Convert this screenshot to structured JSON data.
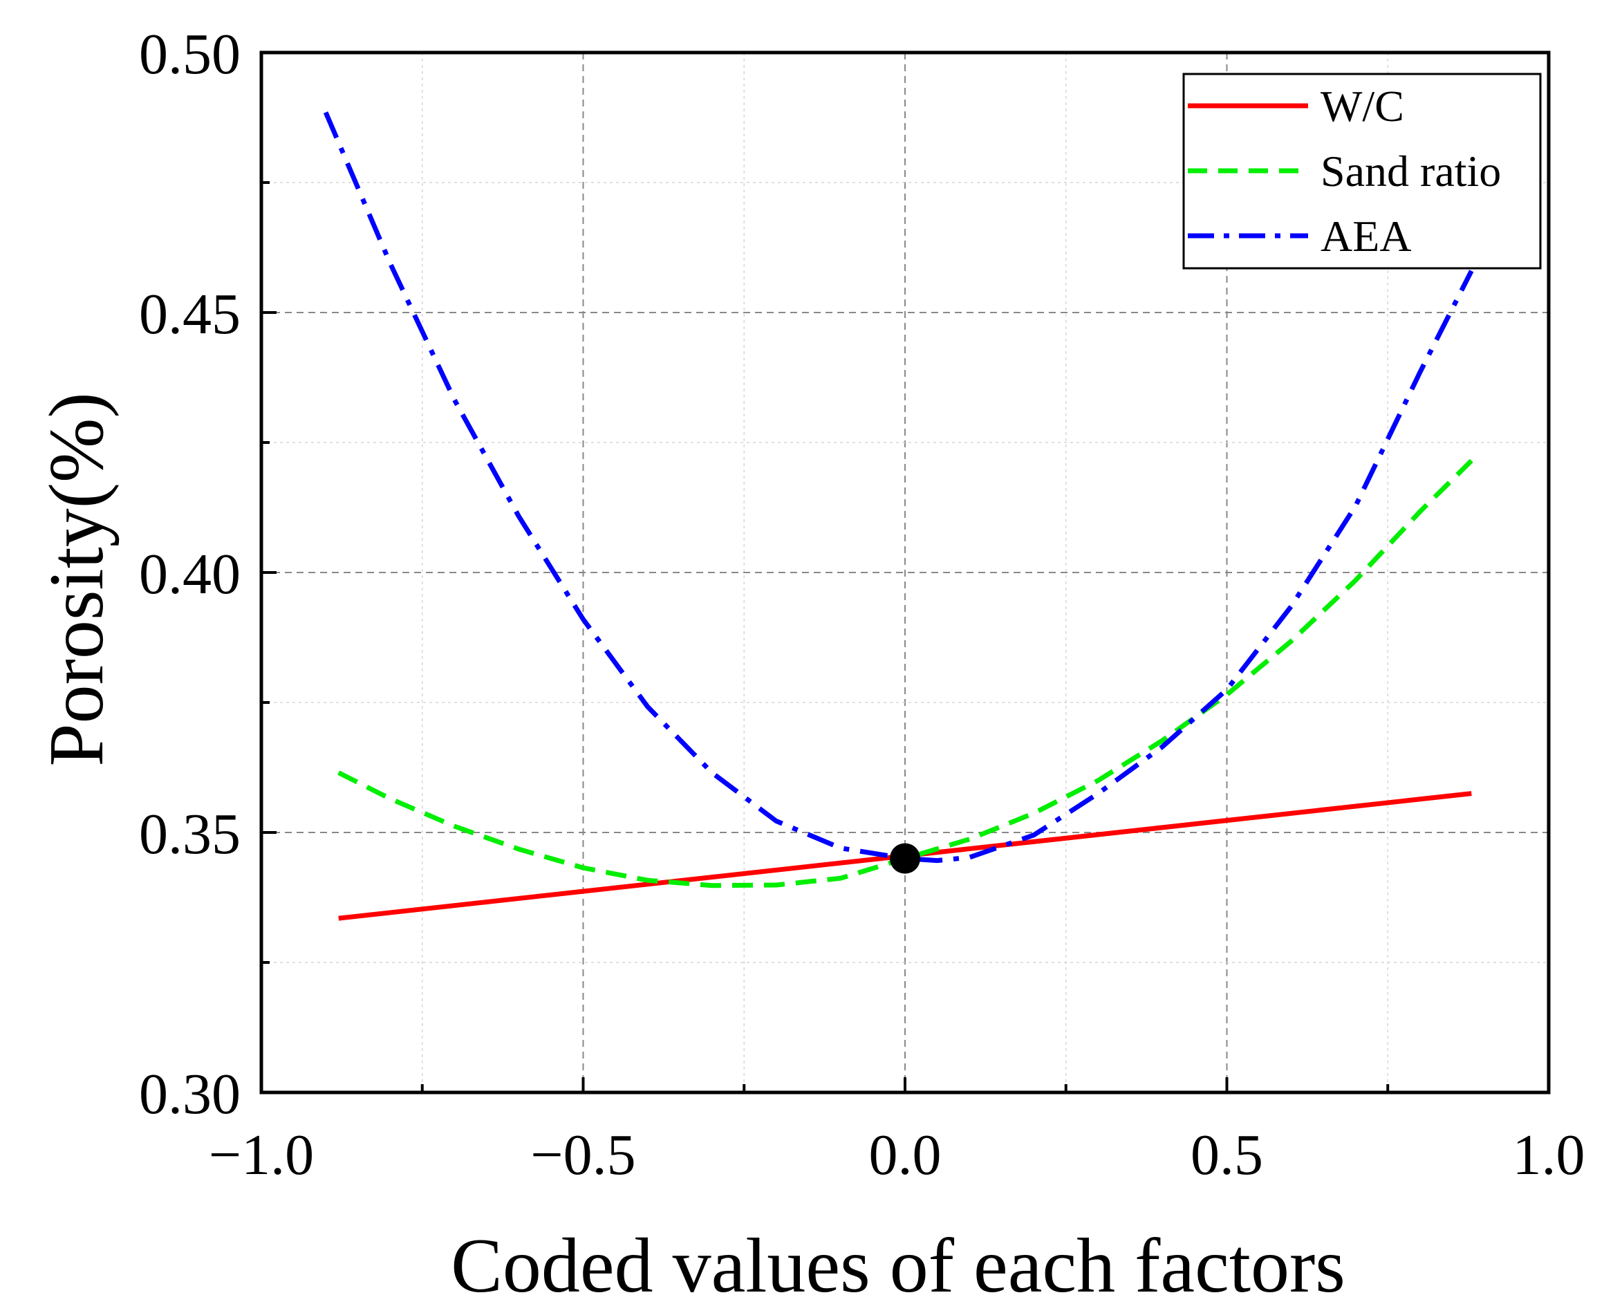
{
  "chart_data": {
    "type": "line",
    "title": "",
    "xlabel": "Coded values of each factors",
    "ylabel": "Porosity(%)",
    "xlim": [
      -1.0,
      1.0
    ],
    "ylim": [
      0.3,
      0.5
    ],
    "x_ticks": [
      -1.0,
      -0.5,
      0.0,
      0.5,
      1.0
    ],
    "x_tick_labels": [
      "−1.0",
      "−0.5",
      "0.0",
      "0.5",
      "1.0"
    ],
    "y_ticks": [
      0.3,
      0.35,
      0.4,
      0.45,
      0.5
    ],
    "y_tick_labels": [
      "0.30",
      "0.35",
      "0.40",
      "0.45",
      "0.50"
    ],
    "grid": true,
    "legend_position": "top-right",
    "series": [
      {
        "name": "W/C",
        "color": "#ff0000",
        "style": "solid",
        "x": [
          -0.88,
          0.88
        ],
        "y": [
          0.3335,
          0.3575
        ]
      },
      {
        "name": "Sand ratio",
        "color": "#00ee00",
        "style": "dashed",
        "x": [
          -0.88,
          -0.8,
          -0.7,
          -0.6,
          -0.5,
          -0.4,
          -0.3,
          -0.2,
          -0.1,
          0.0,
          0.1,
          0.2,
          0.3,
          0.4,
          0.5,
          0.6,
          0.7,
          0.8,
          0.88
        ],
        "y": [
          0.3615,
          0.3565,
          0.3512,
          0.3468,
          0.3432,
          0.3408,
          0.3398,
          0.3399,
          0.3412,
          0.345,
          0.3487,
          0.3537,
          0.36,
          0.3677,
          0.3765,
          0.3868,
          0.3985,
          0.4117,
          0.4215
        ]
      },
      {
        "name": "AEA",
        "color": "#0000ff",
        "style": "dashdot",
        "x": [
          -0.9,
          -0.8,
          -0.7,
          -0.6,
          -0.5,
          -0.4,
          -0.3,
          -0.2,
          -0.1,
          0.0,
          0.05,
          0.1,
          0.2,
          0.3,
          0.4,
          0.5,
          0.6,
          0.7,
          0.8,
          0.88
        ],
        "y": [
          0.4885,
          0.4595,
          0.4332,
          0.4108,
          0.391,
          0.3742,
          0.3615,
          0.3522,
          0.347,
          0.345,
          0.3446,
          0.3452,
          0.3495,
          0.3575,
          0.3665,
          0.3775,
          0.3935,
          0.4128,
          0.4385,
          0.458
        ]
      }
    ],
    "annotations": [
      {
        "type": "point",
        "x": 0.0,
        "y": 0.345,
        "color": "#000000"
      }
    ]
  }
}
